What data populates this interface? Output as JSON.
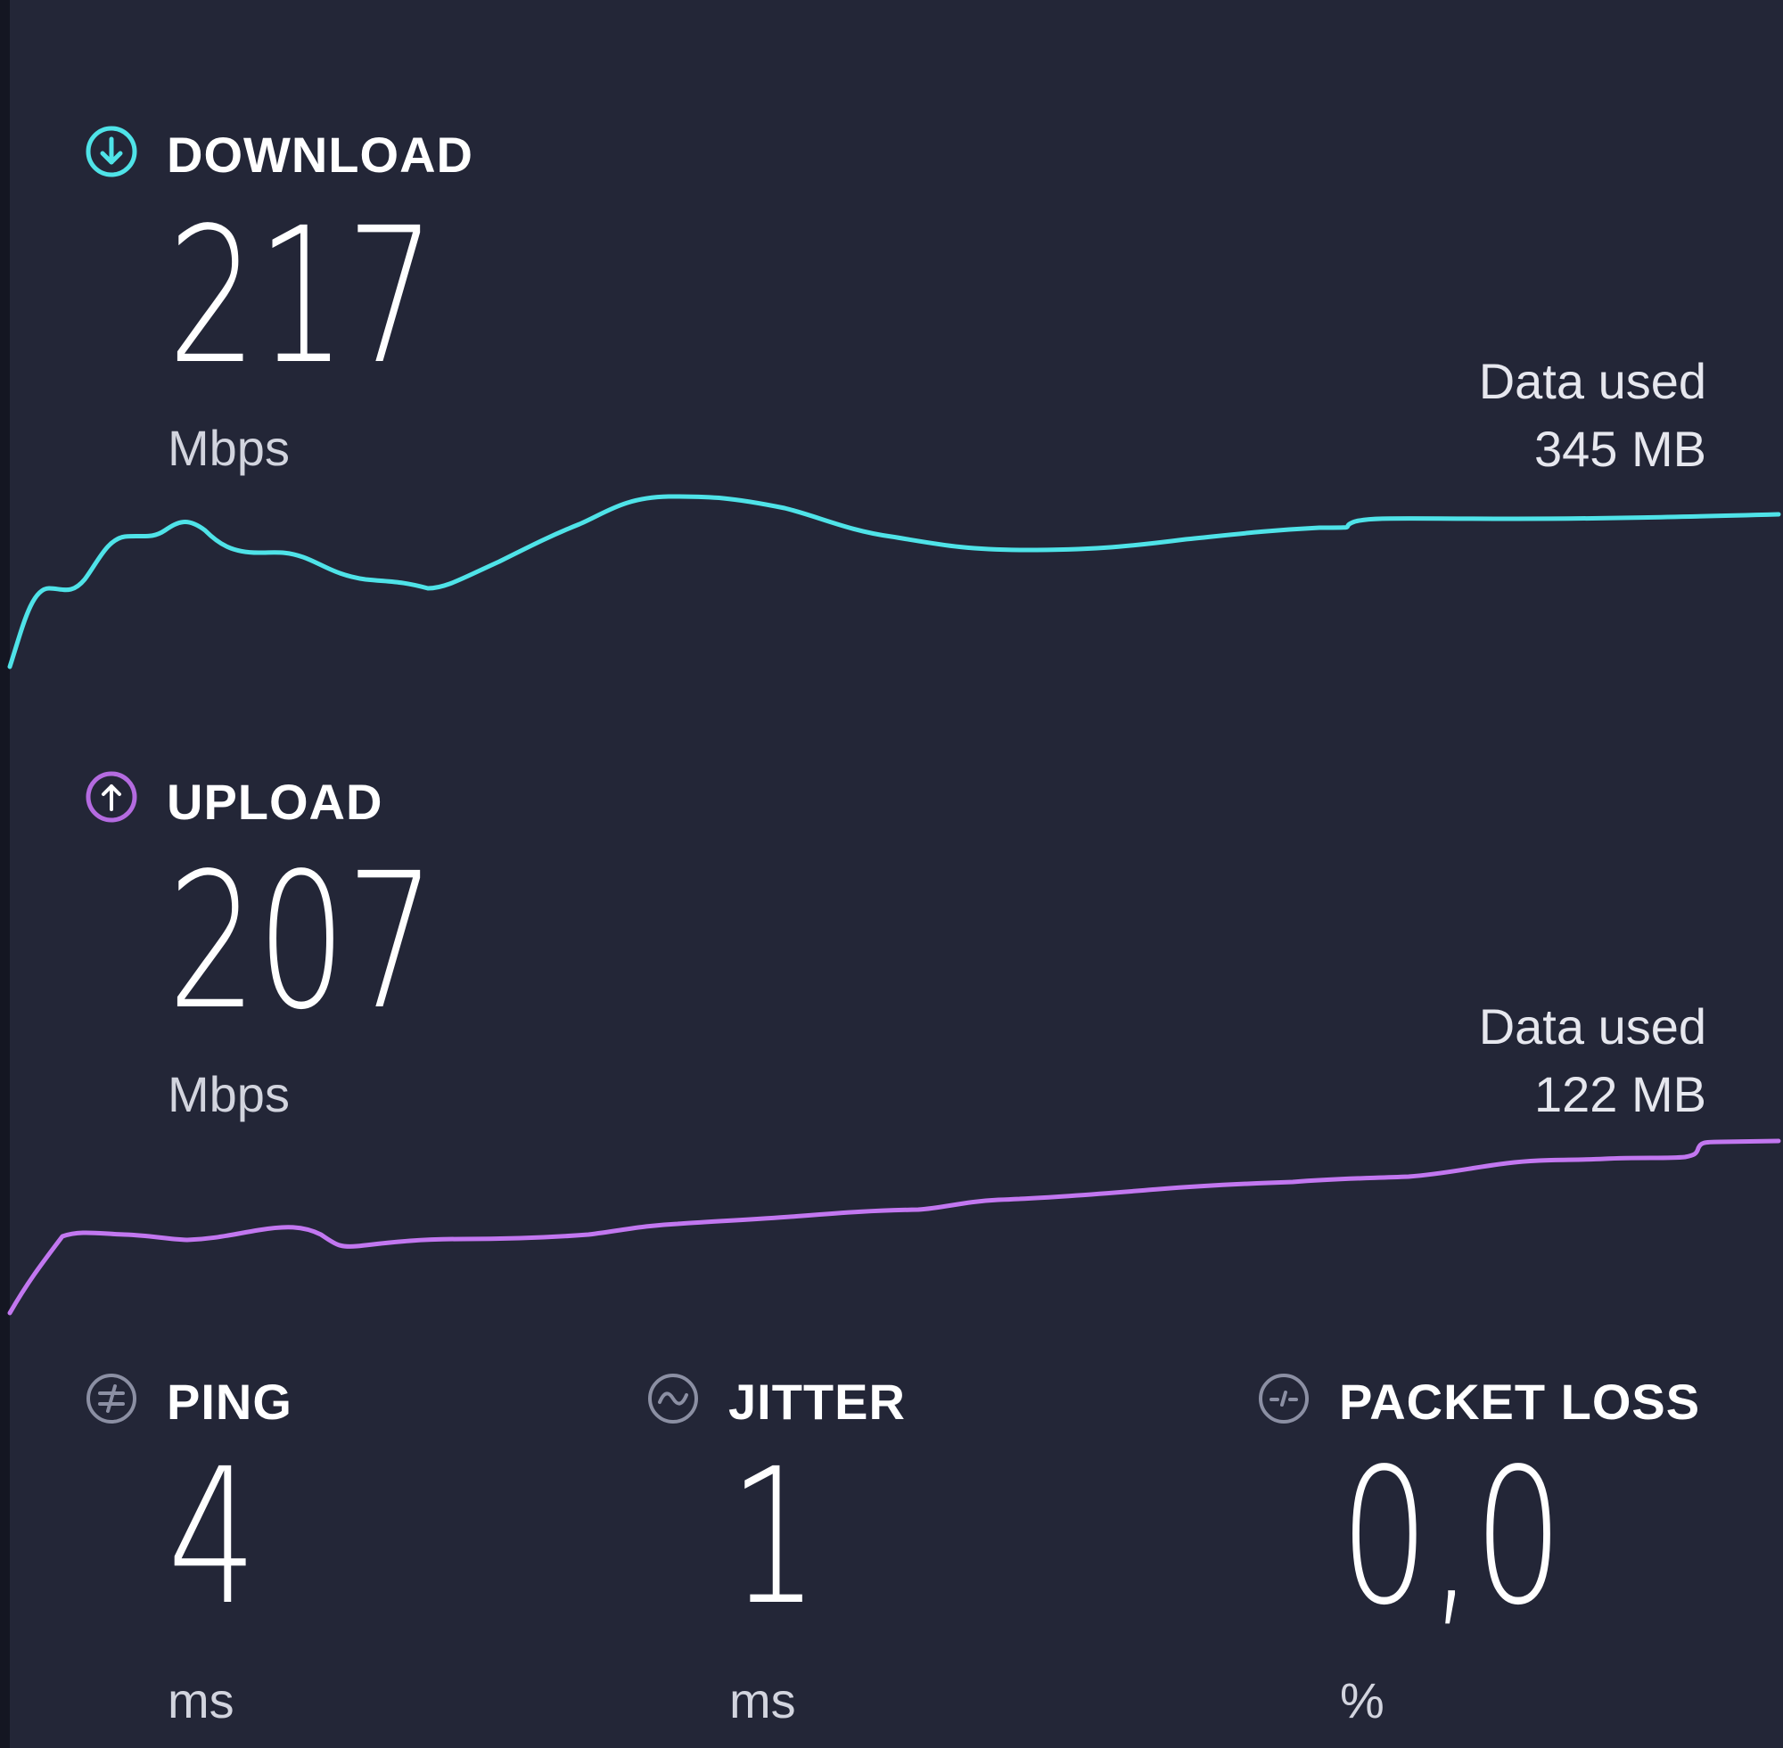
{
  "download": {
    "label": "DOWNLOAD",
    "value": "217",
    "unit": "Mbps",
    "data_used_label": "Data used",
    "data_used_value": "345 MB",
    "color": "#4fe3e8",
    "icon": "arrow-down-circle-icon"
  },
  "upload": {
    "label": "UPLOAD",
    "value": "207",
    "unit": "Mbps",
    "data_used_label": "Data used",
    "data_used_value": "122 MB",
    "color": "#c277f0",
    "icon": "arrow-up-circle-icon"
  },
  "ping": {
    "label": "PING",
    "value": "4",
    "unit": "ms",
    "icon": "ping-icon"
  },
  "jitter": {
    "label": "JITTER",
    "value": "1",
    "unit": "ms",
    "icon": "jitter-wave-icon"
  },
  "packet_loss": {
    "label": "PACKET LOSS",
    "value": "0,0",
    "unit": "%",
    "icon": "packet-loss-icon"
  }
}
